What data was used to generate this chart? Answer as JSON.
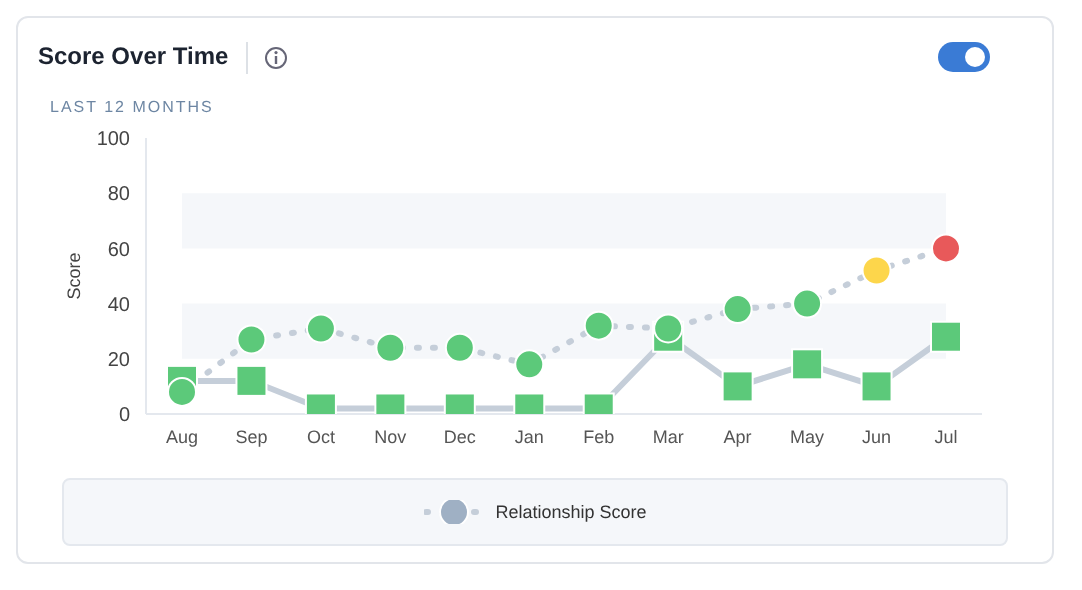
{
  "chart_data": {
    "type": "line",
    "title": "Score Over Time",
    "subtitle": "LAST 12 MONTHS",
    "ylabel": "Score",
    "categories": [
      "Aug",
      "Sep",
      "Oct",
      "Nov",
      "Dec",
      "Jan",
      "Feb",
      "Mar",
      "Apr",
      "May",
      "Jun",
      "Jul"
    ],
    "series": [
      {
        "name": "Relationship Score",
        "color": "#c5ced9",
        "line_style": "dotted",
        "marker": "circle",
        "colors": [
          "#5cc97a",
          "#5cc97a",
          "#5cc97a",
          "#5cc97a",
          "#5cc97a",
          "#5cc97a",
          "#5cc97a",
          "#5cc97a",
          "#5cc97a",
          "#5cc97a",
          "#fdd64b",
          "#e8595a"
        ],
        "values": [
          8,
          27,
          31,
          24,
          24,
          18,
          32,
          31,
          38,
          40,
          52,
          60
        ]
      },
      {
        "color": "#c5ced9",
        "line_style": "solid",
        "marker": "square",
        "colors": [
          "#5cc97a",
          "#5cc97a",
          "#5cc97a",
          "#5cc97a",
          "#5cc97a",
          "#5cc97a",
          "#5cc97a",
          "#5cc97a",
          "#5cc97a",
          "#5cc97a",
          "#5cc97a",
          "#5cc97a"
        ],
        "values": [
          12,
          12,
          2,
          2,
          2,
          2,
          2,
          28,
          10,
          18,
          10,
          28
        ]
      }
    ],
    "ylim": [
      0,
      100
    ],
    "yticks": [
      0,
      20,
      40,
      60,
      80,
      100
    ],
    "grid": false,
    "legend": "bottom",
    "bands": [
      {
        "axis": "y",
        "from": 20,
        "to": 40,
        "color": "#f5f7fa"
      },
      {
        "axis": "y",
        "from": 60,
        "to": 80,
        "color": "#f5f7fa"
      }
    ]
  }
}
